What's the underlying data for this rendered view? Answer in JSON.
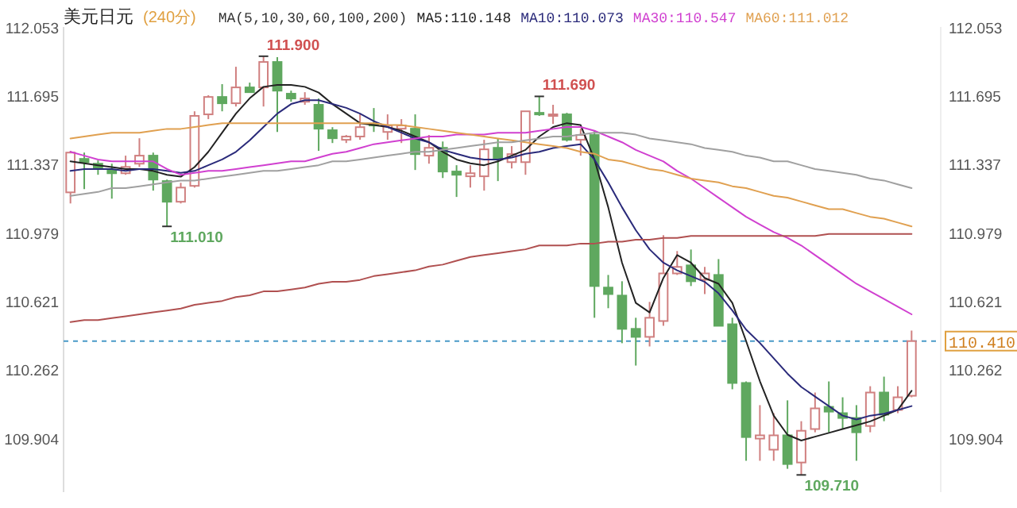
{
  "chart_data": {
    "type": "candlestick",
    "title": "美元日元",
    "subtitle": "(240分)",
    "legend": "top",
    "annotations": [
      "MA(5,10,30,60,100,200)",
      "111.900",
      "111.010",
      "111.690",
      "109.710"
    ],
    "categories": [
      null,
      null,
      null,
      null,
      null,
      null,
      null,
      null,
      null,
      null,
      null,
      null,
      null,
      null,
      null,
      null,
      null,
      null,
      null,
      null,
      null,
      null,
      null,
      null,
      null,
      null,
      null,
      null,
      null,
      null,
      null,
      null,
      null,
      null,
      null,
      null,
      null,
      null,
      null,
      null,
      null,
      null,
      null,
      null,
      null,
      null,
      null,
      null,
      null,
      null,
      null,
      null,
      null,
      null,
      null,
      null,
      null,
      null,
      null,
      null,
      null,
      null
    ],
    "ohlc": [
      [
        111.188,
        111.405,
        111.13,
        111.396
      ],
      [
        111.363,
        111.396,
        111.205,
        111.346
      ],
      [
        111.338,
        111.355,
        111.28,
        111.313
      ],
      [
        111.305,
        111.338,
        111.155,
        111.288
      ],
      [
        111.288,
        111.38,
        111.28,
        111.321
      ],
      [
        111.338,
        111.471,
        111.321,
        111.38
      ],
      [
        111.38,
        111.396,
        111.197,
        111.255
      ],
      [
        111.247,
        111.255,
        111.01,
        111.139
      ],
      [
        111.139,
        111.238,
        111.13,
        111.213
      ],
      [
        111.222,
        111.612,
        111.213,
        111.588
      ],
      [
        111.596,
        111.696,
        111.571,
        111.687
      ],
      [
        111.687,
        111.754,
        111.612,
        111.654
      ],
      [
        111.654,
        111.845,
        111.637,
        111.737
      ],
      [
        111.737,
        111.762,
        111.712,
        111.712
      ],
      [
        111.737,
        111.9,
        111.637,
        111.87
      ],
      [
        111.87,
        111.895,
        111.504,
        111.72
      ],
      [
        111.704,
        111.72,
        111.662,
        111.679
      ],
      [
        111.662,
        111.712,
        111.646,
        111.679
      ],
      [
        111.646,
        111.679,
        111.405,
        111.521
      ],
      [
        111.513,
        111.529,
        111.446,
        111.471
      ],
      [
        111.463,
        111.488,
        111.446,
        111.48
      ],
      [
        111.48,
        111.596,
        111.463,
        111.529
      ],
      [
        111.546,
        111.629,
        111.504,
        111.538
      ],
      [
        111.504,
        111.596,
        111.463,
        111.538
      ],
      [
        111.521,
        111.571,
        111.446,
        111.538
      ],
      [
        111.521,
        111.596,
        111.305,
        111.388
      ],
      [
        111.38,
        111.488,
        111.338,
        111.421
      ],
      [
        111.421,
        111.454,
        111.263,
        111.297
      ],
      [
        111.297,
        111.33,
        111.164,
        111.28
      ],
      [
        111.272,
        111.33,
        111.213,
        111.288
      ],
      [
        111.272,
        111.463,
        111.197,
        111.413
      ],
      [
        111.421,
        111.471,
        111.247,
        111.363
      ],
      [
        111.346,
        111.43,
        111.313,
        111.388
      ],
      [
        111.346,
        111.612,
        111.28,
        111.612
      ],
      [
        111.604,
        111.69,
        111.588,
        111.596
      ],
      [
        111.588,
        111.646,
        111.546,
        111.596
      ],
      [
        111.596,
        111.604,
        111.454,
        111.463
      ],
      [
        111.463,
        111.521,
        111.38,
        111.488
      ],
      [
        111.488,
        111.513,
        110.532,
        110.698
      ],
      [
        110.69,
        110.756,
        110.582,
        110.656
      ],
      [
        110.648,
        110.723,
        110.399,
        110.474
      ],
      [
        110.474,
        110.532,
        110.282,
        110.432
      ],
      [
        110.432,
        110.615,
        110.382,
        110.532
      ],
      [
        110.515,
        110.964,
        110.49,
        110.764
      ],
      [
        110.764,
        110.881,
        110.756,
        110.798
      ],
      [
        110.806,
        110.889,
        110.698,
        110.723
      ],
      [
        110.731,
        110.798,
        110.656,
        110.764
      ],
      [
        110.756,
        110.839,
        110.49,
        110.49
      ],
      [
        110.498,
        110.532,
        110.158,
        110.191
      ],
      [
        110.191,
        110.199,
        109.784,
        109.908
      ],
      [
        109.9,
        110.075,
        109.784,
        109.917
      ],
      [
        109.842,
        110.033,
        109.784,
        109.917
      ],
      [
        109.917,
        110.1,
        109.742,
        109.767
      ],
      [
        109.775,
        109.991,
        109.71,
        109.941
      ],
      [
        109.95,
        110.141,
        109.933,
        110.058
      ],
      [
        110.066,
        110.199,
        109.933,
        110.041
      ],
      [
        110.033,
        110.116,
        109.95,
        110.008
      ],
      [
        110.008,
        110.075,
        109.784,
        109.933
      ],
      [
        109.966,
        110.174,
        109.933,
        110.141
      ],
      [
        110.141,
        110.224,
        109.991,
        110.025
      ],
      [
        110.05,
        110.174,
        110.033,
        110.116
      ],
      [
        110.124,
        110.465,
        110.116,
        110.41
      ]
    ],
    "colors": [
      "#d08080",
      "#5fa85f",
      "#5fa85f",
      "#5fa85f",
      "#d08080",
      "#d08080",
      "#5fa85f",
      "#5fa85f",
      "#d08080",
      "#d08080",
      "#d08080",
      "#5fa85f",
      "#d08080",
      "#5fa85f",
      "#d08080",
      "#5fa85f",
      "#5fa85f",
      "#d08080",
      "#5fa85f",
      "#5fa85f",
      "#d08080",
      "#d08080",
      "#5fa85f",
      "#d08080",
      "#d08080",
      "#5fa85f",
      "#d08080",
      "#5fa85f",
      "#5fa85f",
      "#d08080",
      "#d08080",
      "#5fa85f",
      "#d08080",
      "#d08080",
      "#5fa85f",
      "#d08080",
      "#5fa85f",
      "#d08080",
      "#5fa85f",
      "#5fa85f",
      "#5fa85f",
      "#5fa85f",
      "#d08080",
      "#d08080",
      "#d08080",
      "#5fa85f",
      "#d08080",
      "#5fa85f",
      "#5fa85f",
      "#5fa85f",
      "#d08080",
      "#d08080",
      "#5fa85f",
      "#d08080",
      "#d08080",
      "#5fa85f",
      "#5fa85f",
      "#5fa85f",
      "#d08080",
      "#5fa85f",
      "#d08080",
      "#d08080"
    ],
    "series": [
      {
        "type": "line",
        "name": "MA5:110.148",
        "color": "#222222",
        "values": [
          111.35,
          111.34,
          111.33,
          111.32,
          111.31,
          111.31,
          111.3,
          111.28,
          111.27,
          111.32,
          111.4,
          111.5,
          111.6,
          111.68,
          111.74,
          111.75,
          111.75,
          111.74,
          111.71,
          111.65,
          111.6,
          111.55,
          111.54,
          111.53,
          111.51,
          111.48,
          111.45,
          111.4,
          111.36,
          111.34,
          111.33,
          111.35,
          111.38,
          111.41,
          111.48,
          111.53,
          111.55,
          111.54,
          111.36,
          111.11,
          110.82,
          110.61,
          110.56,
          110.74,
          110.86,
          110.82,
          110.74,
          110.71,
          110.61,
          110.41,
          110.2,
          110.02,
          109.92,
          109.89,
          109.91,
          109.93,
          109.95,
          109.97,
          109.99,
          110.02,
          110.05,
          110.15
        ]
      },
      {
        "type": "line",
        "name": "MA10:110.073",
        "color": "#2a2a7a",
        "values": [
          111.3,
          111.31,
          111.31,
          111.31,
          111.3,
          111.31,
          111.31,
          111.3,
          111.29,
          111.3,
          111.33,
          111.36,
          111.4,
          111.46,
          111.53,
          111.6,
          111.65,
          111.67,
          111.67,
          111.65,
          111.63,
          111.6,
          111.56,
          111.53,
          111.5,
          111.47,
          111.45,
          111.41,
          111.39,
          111.37,
          111.36,
          111.36,
          111.37,
          111.39,
          111.4,
          111.42,
          111.43,
          111.44,
          111.36,
          111.24,
          111.11,
          110.99,
          110.89,
          110.82,
          110.78,
          110.75,
          110.72,
          110.66,
          110.57,
          110.47,
          110.4,
          110.32,
          110.24,
          110.17,
          110.12,
          110.07,
          110.02,
          110.0,
          110.02,
          110.03,
          110.05,
          110.07
        ]
      },
      {
        "type": "line",
        "name": "MA30:110.547",
        "color": "#d040d0",
        "values": [
          111.4,
          111.38,
          111.36,
          111.35,
          111.35,
          111.35,
          111.35,
          111.31,
          111.28,
          111.29,
          111.3,
          111.3,
          111.31,
          111.32,
          111.33,
          111.34,
          111.35,
          111.35,
          111.37,
          111.39,
          111.4,
          111.42,
          111.44,
          111.45,
          111.46,
          111.47,
          111.48,
          111.48,
          111.49,
          111.49,
          111.49,
          111.5,
          111.5,
          111.5,
          111.51,
          111.52,
          111.53,
          111.53,
          111.51,
          111.48,
          111.45,
          111.41,
          111.38,
          111.35,
          111.3,
          111.26,
          111.21,
          111.16,
          111.11,
          111.06,
          111.02,
          110.98,
          110.95,
          110.91,
          110.86,
          110.81,
          110.76,
          110.71,
          110.67,
          110.63,
          110.59,
          110.55
        ]
      },
      {
        "type": "line",
        "name": "MA60:111.012",
        "color": "#e0a050",
        "values": [
          111.47,
          111.48,
          111.49,
          111.5,
          111.5,
          111.5,
          111.51,
          111.52,
          111.52,
          111.53,
          111.54,
          111.55,
          111.55,
          111.55,
          111.55,
          111.55,
          111.55,
          111.55,
          111.55,
          111.55,
          111.55,
          111.55,
          111.55,
          111.54,
          111.54,
          111.53,
          111.52,
          111.51,
          111.5,
          111.49,
          111.48,
          111.47,
          111.46,
          111.45,
          111.44,
          111.43,
          111.42,
          111.4,
          111.39,
          111.36,
          111.35,
          111.33,
          111.31,
          111.3,
          111.28,
          111.26,
          111.25,
          111.24,
          111.22,
          111.21,
          111.19,
          111.17,
          111.16,
          111.14,
          111.12,
          111.1,
          111.1,
          111.08,
          111.06,
          111.05,
          111.03,
          111.01
        ]
      },
      {
        "type": "line",
        "color": "#a0a0a0",
        "values": [
          111.17,
          111.18,
          111.19,
          111.21,
          111.21,
          111.22,
          111.23,
          111.24,
          111.25,
          111.25,
          111.26,
          111.27,
          111.28,
          111.29,
          111.3,
          111.3,
          111.31,
          111.32,
          111.33,
          111.35,
          111.35,
          111.36,
          111.37,
          111.38,
          111.39,
          111.4,
          111.4,
          111.41,
          111.42,
          111.43,
          111.44,
          111.45,
          111.45,
          111.46,
          111.47,
          111.48,
          111.48,
          111.49,
          111.5,
          111.5,
          111.5,
          111.49,
          111.47,
          111.46,
          111.45,
          111.44,
          111.42,
          111.41,
          111.4,
          111.38,
          111.37,
          111.35,
          111.35,
          111.33,
          111.31,
          111.3,
          111.29,
          111.28,
          111.26,
          111.25,
          111.23,
          111.21
        ]
      },
      {
        "type": "line",
        "color": "#b05050",
        "values": [
          110.51,
          110.52,
          110.52,
          110.53,
          110.54,
          110.55,
          110.56,
          110.57,
          110.58,
          110.6,
          110.61,
          110.62,
          110.64,
          110.65,
          110.67,
          110.67,
          110.68,
          110.69,
          110.71,
          110.72,
          110.72,
          110.73,
          110.75,
          110.76,
          110.77,
          110.78,
          110.8,
          110.81,
          110.83,
          110.85,
          110.86,
          110.87,
          110.88,
          110.89,
          110.91,
          110.91,
          110.91,
          110.92,
          110.92,
          110.93,
          110.93,
          110.94,
          110.94,
          110.95,
          110.95,
          110.96,
          110.96,
          110.96,
          110.96,
          110.96,
          110.96,
          110.96,
          110.96,
          110.96,
          110.96,
          110.97,
          110.97,
          110.97,
          110.97,
          110.97,
          110.97,
          110.97
        ]
      }
    ],
    "ref_lines": [
      {
        "axis": "y2",
        "value": 110.41,
        "label": "110.410",
        "color": "#4a9ac8",
        "line_style": "dashed"
      }
    ],
    "ylim": [
      109.62,
      112.053
    ],
    "yticks": [
      112.053,
      111.695,
      111.337,
      110.979,
      110.621,
      110.262,
      109.904
    ],
    "y2lim": [
      109.62,
      112.053
    ],
    "y2ticks": [
      112.053,
      111.695,
      111.337,
      110.979,
      110.621,
      110.262,
      109.904
    ]
  }
}
